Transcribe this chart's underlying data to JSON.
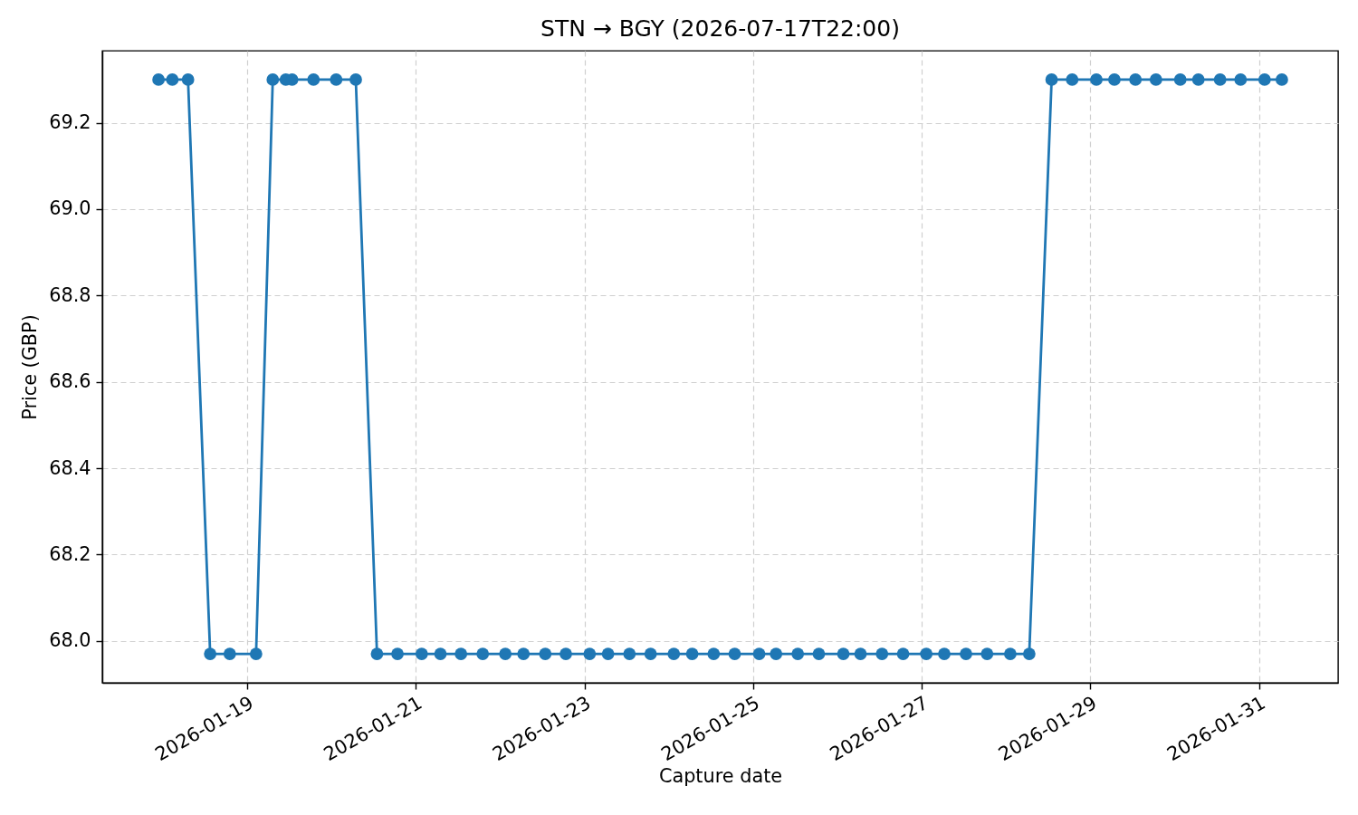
{
  "chart_data": {
    "type": "line",
    "title": "STN → BGY (2026-07-17T22:00)",
    "xlabel": "Capture date",
    "ylabel": "Price (GBP)",
    "x": [
      "2026-01-17T22:46",
      "2026-01-18T02:42",
      "2026-01-18T07:10",
      "2026-01-18T13:28",
      "2026-01-18T19:03",
      "2026-01-19T02:32",
      "2026-01-19T07:17",
      "2026-01-19T11:00",
      "2026-01-19T12:47",
      "2026-01-19T18:53",
      "2026-01-20T01:20",
      "2026-01-20T06:55",
      "2026-01-20T12:57",
      "2026-01-20T18:47",
      "2026-01-21T01:41",
      "2026-01-21T07:01",
      "2026-01-21T12:51",
      "2026-01-21T19:03",
      "2026-01-22T01:29",
      "2026-01-22T06:39",
      "2026-01-22T12:51",
      "2026-01-22T18:42",
      "2026-01-23T01:29",
      "2026-01-23T06:43",
      "2026-01-23T12:49",
      "2026-01-23T18:50",
      "2026-01-24T01:26",
      "2026-01-24T06:40",
      "2026-01-24T12:47",
      "2026-01-24T18:46",
      "2026-01-25T01:44",
      "2026-01-25T06:32",
      "2026-01-25T12:43",
      "2026-01-25T18:43",
      "2026-01-26T01:41",
      "2026-01-26T06:35",
      "2026-01-26T12:42",
      "2026-01-26T18:42",
      "2026-01-27T01:18",
      "2026-01-27T06:25",
      "2026-01-27T12:36",
      "2026-01-27T18:36",
      "2026-01-28T01:12",
      "2026-01-28T06:36",
      "2026-01-28T12:58",
      "2026-01-28T18:49",
      "2026-01-29T01:42",
      "2026-01-29T06:50",
      "2026-01-29T12:50",
      "2026-01-29T18:40",
      "2026-01-30T01:35",
      "2026-01-30T06:44",
      "2026-01-30T12:55",
      "2026-01-30T18:45",
      "2026-01-31T01:35",
      "2026-01-31T06:30"
    ],
    "values": [
      69.3,
      69.3,
      69.3,
      67.97,
      67.97,
      67.97,
      69.3,
      69.3,
      69.3,
      69.3,
      69.3,
      69.3,
      67.97,
      67.97,
      67.97,
      67.97,
      67.97,
      67.97,
      67.97,
      67.97,
      67.97,
      67.97,
      67.97,
      67.97,
      67.97,
      67.97,
      67.97,
      67.97,
      67.97,
      67.97,
      67.97,
      67.97,
      67.97,
      67.97,
      67.97,
      67.97,
      67.97,
      67.97,
      67.97,
      67.97,
      67.97,
      67.97,
      67.97,
      67.97,
      69.3,
      69.3,
      69.3,
      69.3,
      69.3,
      69.3,
      69.3,
      69.3,
      69.3,
      69.3,
      69.3,
      69.3
    ],
    "color": "#1f77b4",
    "xlim": [
      "2026-01-17T06:46",
      "2026-01-31T22:30"
    ],
    "xticks": [
      "2026-01-19",
      "2026-01-21",
      "2026-01-23",
      "2026-01-25",
      "2026-01-27",
      "2026-01-29",
      "2026-01-31"
    ],
    "ylim": [
      67.903,
      69.367
    ],
    "yticks": [
      {
        "value": 68.0,
        "label": "68.0"
      },
      68.2,
      68.4,
      68.6,
      68.8,
      {
        "value": 69.0,
        "label": "69.0"
      },
      69.2
    ],
    "grid": true,
    "marker": "circle",
    "line_style": "solid"
  }
}
